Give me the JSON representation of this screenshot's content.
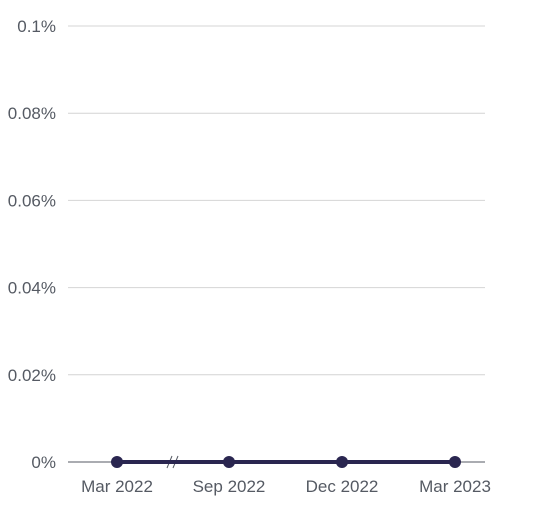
{
  "chart_data": {
    "type": "line",
    "x": [
      "Mar 2022",
      "Sep 2022",
      "Dec 2022",
      "Mar 2023"
    ],
    "series": [
      {
        "values": [
          0,
          0,
          0,
          0
        ]
      }
    ],
    "y_ticks": [
      "0%",
      "0.02%",
      "0.04%",
      "0.06%",
      "0.08%",
      "0.1%"
    ],
    "ylim": [
      0,
      0.1
    ],
    "y_unit": "%",
    "axis_break": "between Mar 2022 and Sep 2022",
    "grid": true,
    "colors": {
      "series": "#2a2650",
      "grid": "#d4d4d4",
      "axis": "#555a63",
      "tick_text": "#555a63"
    }
  }
}
